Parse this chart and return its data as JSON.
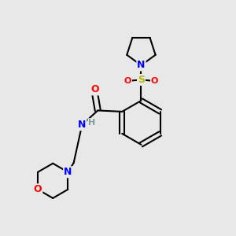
{
  "background_color": "#e8e8e8",
  "bond_color": "#000000",
  "bond_width": 1.5,
  "atom_colors": {
    "N": "#0000ff",
    "O": "#ff0000",
    "S": "#b8b800",
    "C": "#000000",
    "H": "#7a9e9e"
  },
  "font_size_atoms": 9,
  "font_size_H": 8
}
